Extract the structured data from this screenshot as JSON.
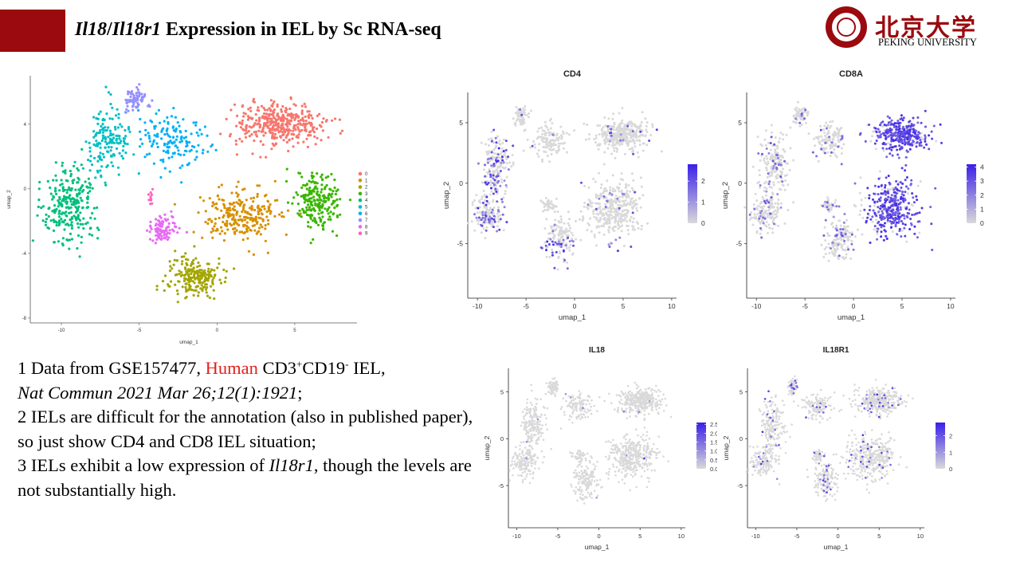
{
  "header": {
    "title_gene1": "Il18",
    "title_sep": "/",
    "title_gene2": "Il18r1",
    "title_rest": " Expression in IEL by Sc RNA-seq",
    "logo_cn": "北京大学",
    "logo_en": "PEKING UNIVERSITY",
    "accent_color": "#9b0a0e"
  },
  "notes": {
    "l1_prefix": "1 Data from GSE157477, ",
    "l1_human": "Human",
    "l1_cd3": " CD3",
    "l1_plus": "+",
    "l1_cd19": "CD19",
    "l1_minus": "-",
    "l1_iel": " IEL,",
    "l2_journal": "Nat Commun 2021 Mar 26;12(1):1921",
    "l2_end": ";",
    "p2": "2 IELs are difficult for the annotation (also in published paper), so just show CD4 and CD8 IEL situation;",
    "p3_prefix": "3 IELs exhibit a low expression of ",
    "p3_gene": "Il18r1",
    "p3_suffix": ", though the levels are not substantially high."
  },
  "chart_data": [
    {
      "id": "clusters",
      "type": "scatter",
      "title": "",
      "xlabel": "umap_1",
      "ylabel": "umap_2",
      "xlim": [
        -12,
        9
      ],
      "ylim": [
        -8.3,
        7
      ],
      "xticks": [
        -10,
        -5,
        0,
        5
      ],
      "yticks": [
        -8,
        -4,
        0,
        4
      ],
      "legend_position": "right",
      "series": [
        {
          "name": "0",
          "color": "#F8766D",
          "center": [
            4.0,
            4.0
          ],
          "spread": [
            2.6,
            1.2
          ],
          "n": 380
        },
        {
          "name": "1",
          "color": "#D89000",
          "center": [
            1.5,
            -1.5
          ],
          "spread": [
            2.2,
            1.4
          ],
          "n": 260
        },
        {
          "name": "2",
          "color": "#A3A500",
          "center": [
            -1.5,
            -5.5
          ],
          "spread": [
            1.6,
            1.2
          ],
          "n": 200
        },
        {
          "name": "3",
          "color": "#39B600",
          "center": [
            6.5,
            -0.8
          ],
          "spread": [
            1.3,
            1.6
          ],
          "n": 220
        },
        {
          "name": "4",
          "color": "#00BF7D",
          "center": [
            -9.5,
            -1.0
          ],
          "spread": [
            1.6,
            2.0
          ],
          "n": 260
        },
        {
          "name": "5",
          "color": "#00BFC4",
          "center": [
            -7.0,
            3.0
          ],
          "spread": [
            1.4,
            1.8
          ],
          "n": 160
        },
        {
          "name": "6",
          "color": "#00B0F6",
          "center": [
            -3.0,
            3.0
          ],
          "spread": [
            2.0,
            1.5
          ],
          "n": 150
        },
        {
          "name": "7",
          "color": "#9590FF",
          "center": [
            -5.2,
            5.5
          ],
          "spread": [
            0.7,
            0.6
          ],
          "n": 70
        },
        {
          "name": "8",
          "color": "#E76BF3",
          "center": [
            -3.5,
            -2.5
          ],
          "spread": [
            0.8,
            0.6
          ],
          "n": 90
        },
        {
          "name": "9",
          "color": "#FF62BC",
          "center": [
            -4.2,
            -0.6
          ],
          "spread": [
            0.15,
            0.4
          ],
          "n": 10
        }
      ]
    },
    {
      "id": "cd4",
      "type": "scatter",
      "title": "CD4",
      "xlabel": "umap_1",
      "ylabel": "umap_2",
      "xlim": [
        -11,
        10.5
      ],
      "ylim": [
        -9.5,
        7.5
      ],
      "xticks": [
        -10,
        -5,
        0,
        5,
        10
      ],
      "yticks": [
        -5,
        0,
        5
      ],
      "colorbar_ticks": [
        "0",
        "1",
        "2"
      ],
      "colorbar_max": 2.8,
      "low_color": "#d9d9d9",
      "high_color": "#3a1fe8"
    },
    {
      "id": "cd8a",
      "type": "scatter",
      "title": "CD8A",
      "xlabel": "umap_1",
      "ylabel": "umap_2",
      "xlim": [
        -11,
        10.5
      ],
      "ylim": [
        -9.5,
        7.5
      ],
      "xticks": [
        -10,
        -5,
        0,
        5,
        10
      ],
      "yticks": [
        -5,
        0,
        5
      ],
      "colorbar_ticks": [
        "0",
        "1",
        "2",
        "3",
        "4"
      ],
      "colorbar_max": 4.2,
      "low_color": "#d9d9d9",
      "high_color": "#3a1fe8"
    },
    {
      "id": "il18",
      "type": "scatter",
      "title": "IL18",
      "xlabel": "umap_1",
      "ylabel": "umap_2",
      "xlim": [
        -11,
        10.5
      ],
      "ylim": [
        -9.5,
        7.5
      ],
      "xticks": [
        -10,
        -5,
        0,
        5,
        10
      ],
      "yticks": [
        -5,
        0,
        5
      ],
      "colorbar_ticks": [
        "0.0",
        "0.5",
        "1.0",
        "1.5",
        "2.0",
        "2.5"
      ],
      "colorbar_max": 2.6,
      "low_color": "#d9d9d9",
      "high_color": "#3a1fe8"
    },
    {
      "id": "il18r1",
      "type": "scatter",
      "title": "IL18R1",
      "xlabel": "umap_1",
      "ylabel": "umap_2",
      "xlim": [
        -11,
        10.5
      ],
      "ylim": [
        -9.5,
        7.5
      ],
      "xticks": [
        -10,
        -5,
        0,
        5,
        10
      ],
      "yticks": [
        -5,
        0,
        5
      ],
      "colorbar_ticks": [
        "0",
        "1",
        "2"
      ],
      "colorbar_max": 2.8,
      "low_color": "#d9d9d9",
      "high_color": "#3a1fe8"
    }
  ]
}
